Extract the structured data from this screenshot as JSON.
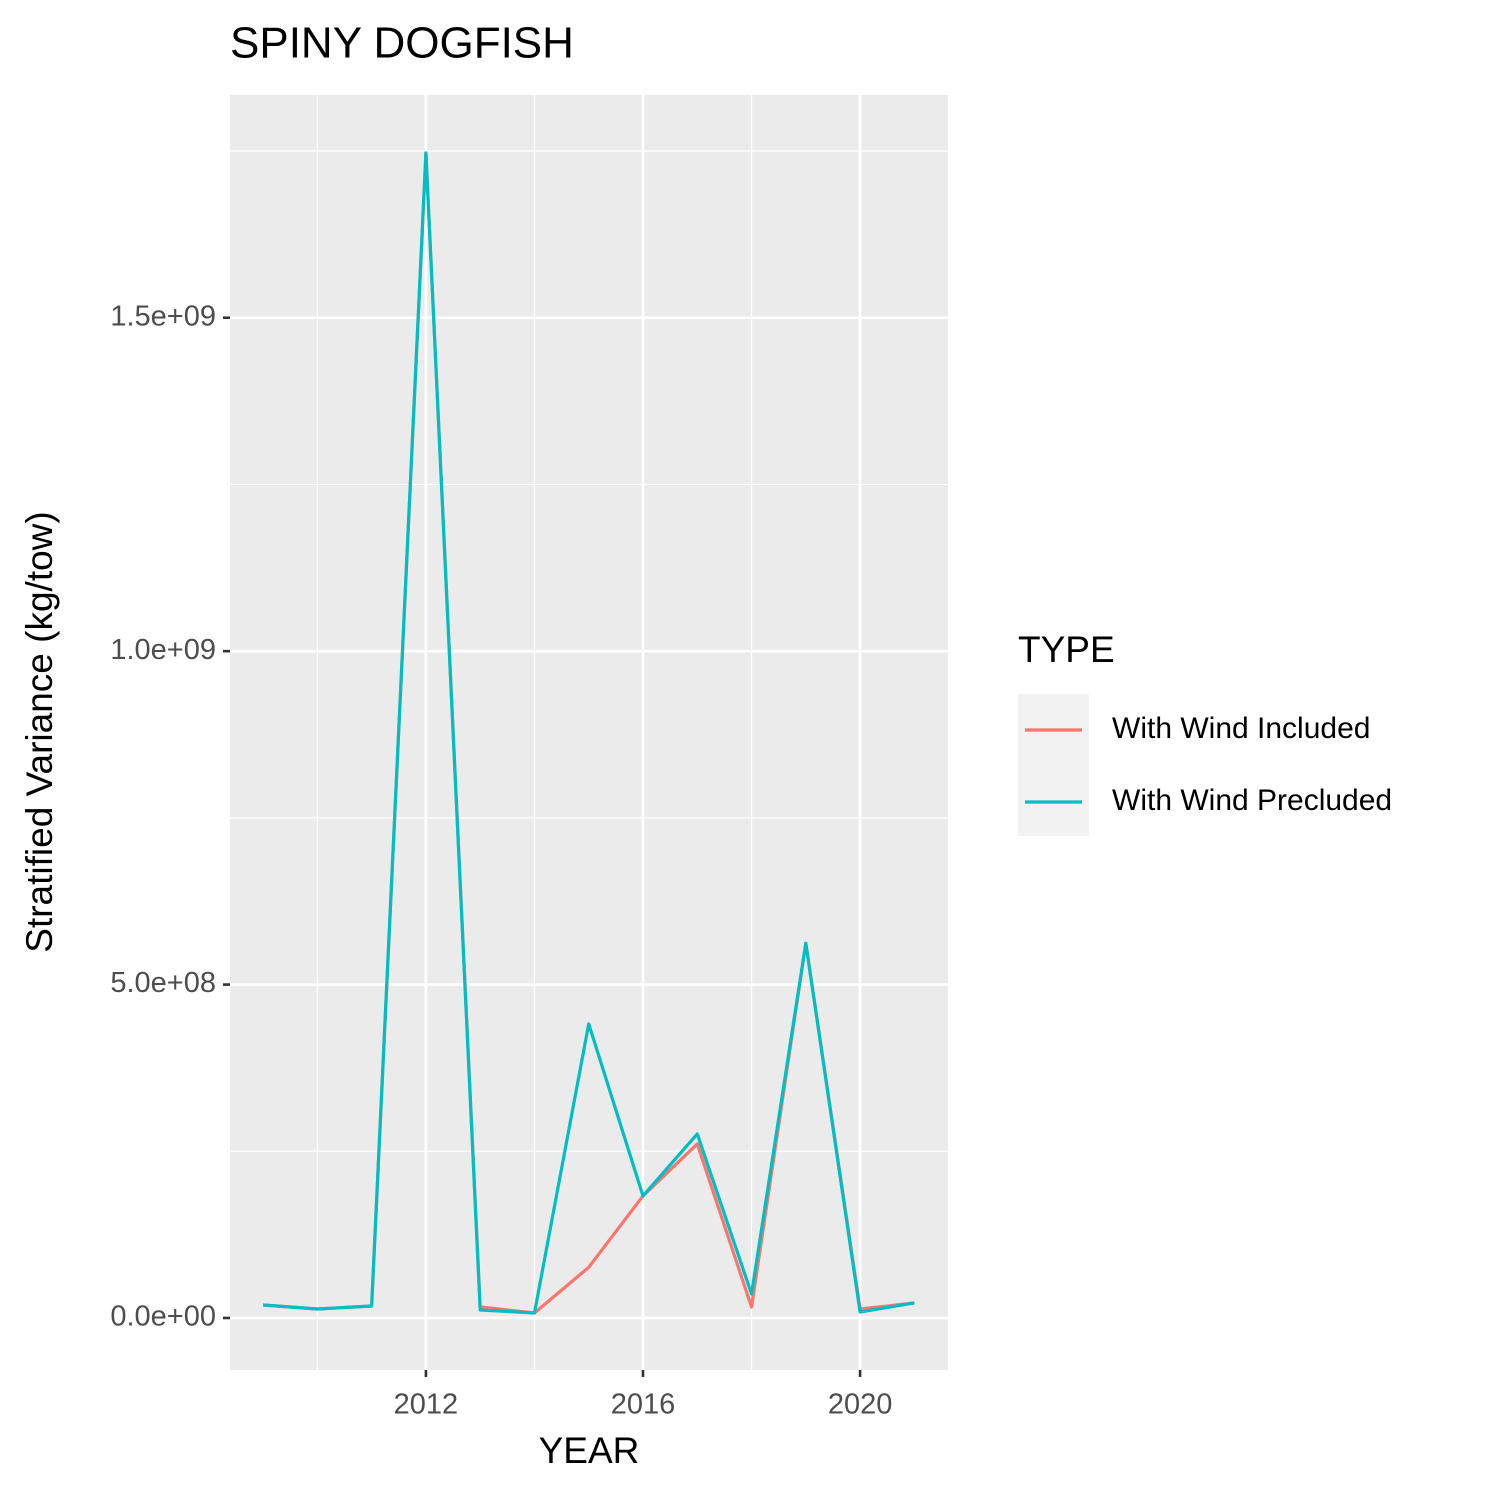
{
  "chart_data": {
    "type": "line",
    "title": "SPINY DOGFISH",
    "x_label": "YEAR",
    "y_label": "Stratified Variance (kg/tow)",
    "x": [
      2009,
      2010,
      2011,
      2012,
      2013,
      2014,
      2015,
      2016,
      2017,
      2018,
      2019,
      2020,
      2021
    ],
    "series": [
      {
        "name": "With Wind Included",
        "color": "#F8766D",
        "values": [
          19500000,
          13500000,
          18000000,
          1747000000,
          16500000,
          7500000,
          76000000,
          183000000,
          261000000,
          16500000,
          562000000,
          13500000,
          22500000
        ]
      },
      {
        "name": "With Wind Precluded",
        "color": "#00BFC4",
        "values": [
          19500000,
          13500000,
          18000000,
          1747000000,
          12000000,
          7500000,
          441000000,
          183000000,
          276000000,
          36000000,
          562000000,
          9000000,
          22500000
        ]
      }
    ],
    "xlim": [
      2008.39,
      2021.62
    ],
    "ylim": [
      -78000000,
      1834000000
    ],
    "xticks": [
      2012,
      2016,
      2020
    ],
    "yticks": [
      {
        "value": 0,
        "label": "0.0e+00"
      },
      {
        "value": 500000000,
        "label": "5.0e+08"
      },
      {
        "value": 1000000000,
        "label": "1.0e+09"
      },
      {
        "value": 1500000000,
        "label": "1.5e+09"
      }
    ],
    "x_minor_ticks": [
      2010,
      2014,
      2018
    ],
    "y_minor_ticks": [
      250000000,
      750000000,
      1250000000,
      1750000000
    ],
    "grid": true,
    "legend_title": "TYPE",
    "legend_position": "right"
  }
}
